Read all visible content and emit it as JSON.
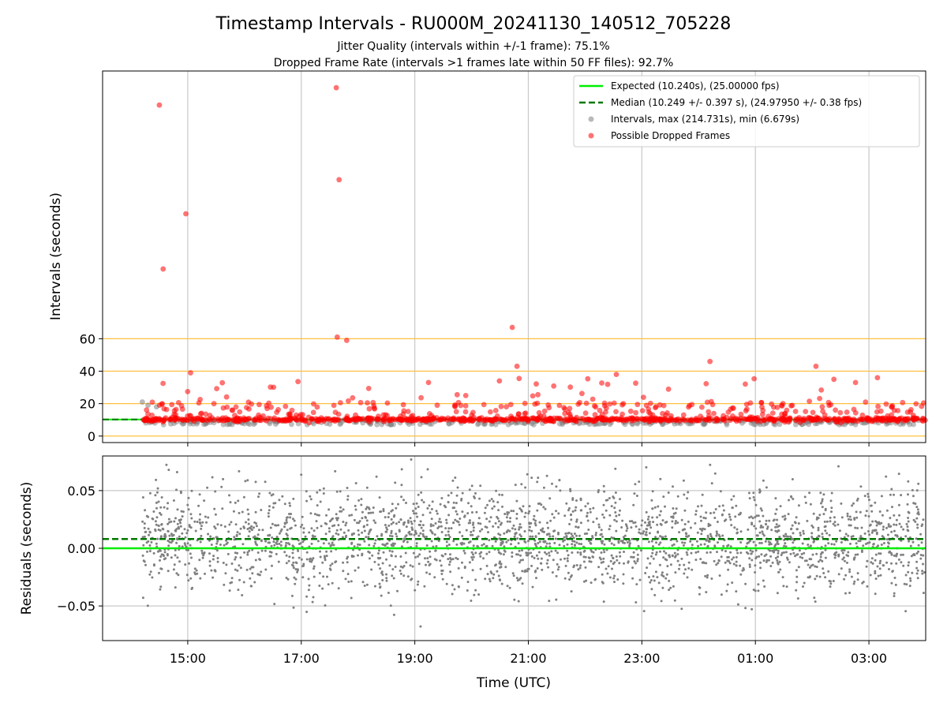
{
  "title": "Timestamp Intervals - RU000M_20241130_140512_705228",
  "subtitle_lines": [
    "Jitter Quality (intervals within +/-1 frame): 75.1%",
    "Dropped Frame Rate (intervals >1 frames late within 50 FF files): 92.7%"
  ],
  "colors": {
    "expected": "#00ee00",
    "median": "#007700",
    "intervals": "#808080",
    "dropped": "#ff0000",
    "hlines": "#ffc040",
    "grid": "#c8c8c8"
  },
  "chart_data": [
    {
      "type": "scatter",
      "ylabel": "Intervals (seconds)",
      "xlabel": "",
      "x_tick_labels": [
        "15:00",
        "17:00",
        "19:00",
        "21:00",
        "23:00",
        "01:00",
        "03:00"
      ],
      "y_ticks": [
        0,
        20,
        40,
        60
      ],
      "ylim": [
        -4,
        225
      ],
      "xlim_hours": [
        13.5,
        28.0
      ],
      "reference_lines_y": [
        0,
        20,
        40,
        60
      ],
      "grid": "vertical",
      "legend_placement": "top-right",
      "legend": [
        "Expected (10.240s), (25.00000 fps)",
        "Median (10.249 +/- 0.397 s), (24.97950 +/- 0.38 fps)",
        "Intervals, max (214.731s), min (6.679s)",
        "Possible Dropped Frames"
      ],
      "expected_interval": 10.24,
      "median_interval": 10.249,
      "intervals_max": 214.731,
      "intervals_min": 6.679,
      "dropped_frames_outliers": [
        {
          "time": "14:30",
          "value": 204
        },
        {
          "time": "14:58",
          "value": 137
        },
        {
          "time": "14:34",
          "value": 103
        },
        {
          "time": "17:37",
          "value": 214.7
        },
        {
          "time": "17:40",
          "value": 158
        },
        {
          "time": "17:38",
          "value": 61
        },
        {
          "time": "17:48",
          "value": 59
        },
        {
          "time": "20:43",
          "value": 67
        },
        {
          "time": "20:48",
          "value": 43
        },
        {
          "time": "02:04",
          "value": 43
        },
        {
          "time": "00:12",
          "value": 46
        },
        {
          "time": "22:33",
          "value": 38
        },
        {
          "time": "15:03",
          "value": 39
        },
        {
          "time": "03:09",
          "value": 36
        }
      ]
    },
    {
      "type": "scatter",
      "ylabel": "Residuals (seconds)",
      "xlabel": "Time (UTC)",
      "x_tick_labels": [
        "15:00",
        "17:00",
        "19:00",
        "21:00",
        "23:00",
        "01:00",
        "03:00"
      ],
      "y_ticks": [
        -0.05,
        0.0,
        0.05
      ],
      "y_tick_labels": [
        "−0.05",
        "0.00",
        "0.05"
      ],
      "ylim": [
        -0.08,
        0.08
      ],
      "xlim_hours": [
        13.5,
        28.0
      ],
      "grid": "both",
      "expected_residual": 0.0,
      "median_residual": 0.008
    }
  ]
}
